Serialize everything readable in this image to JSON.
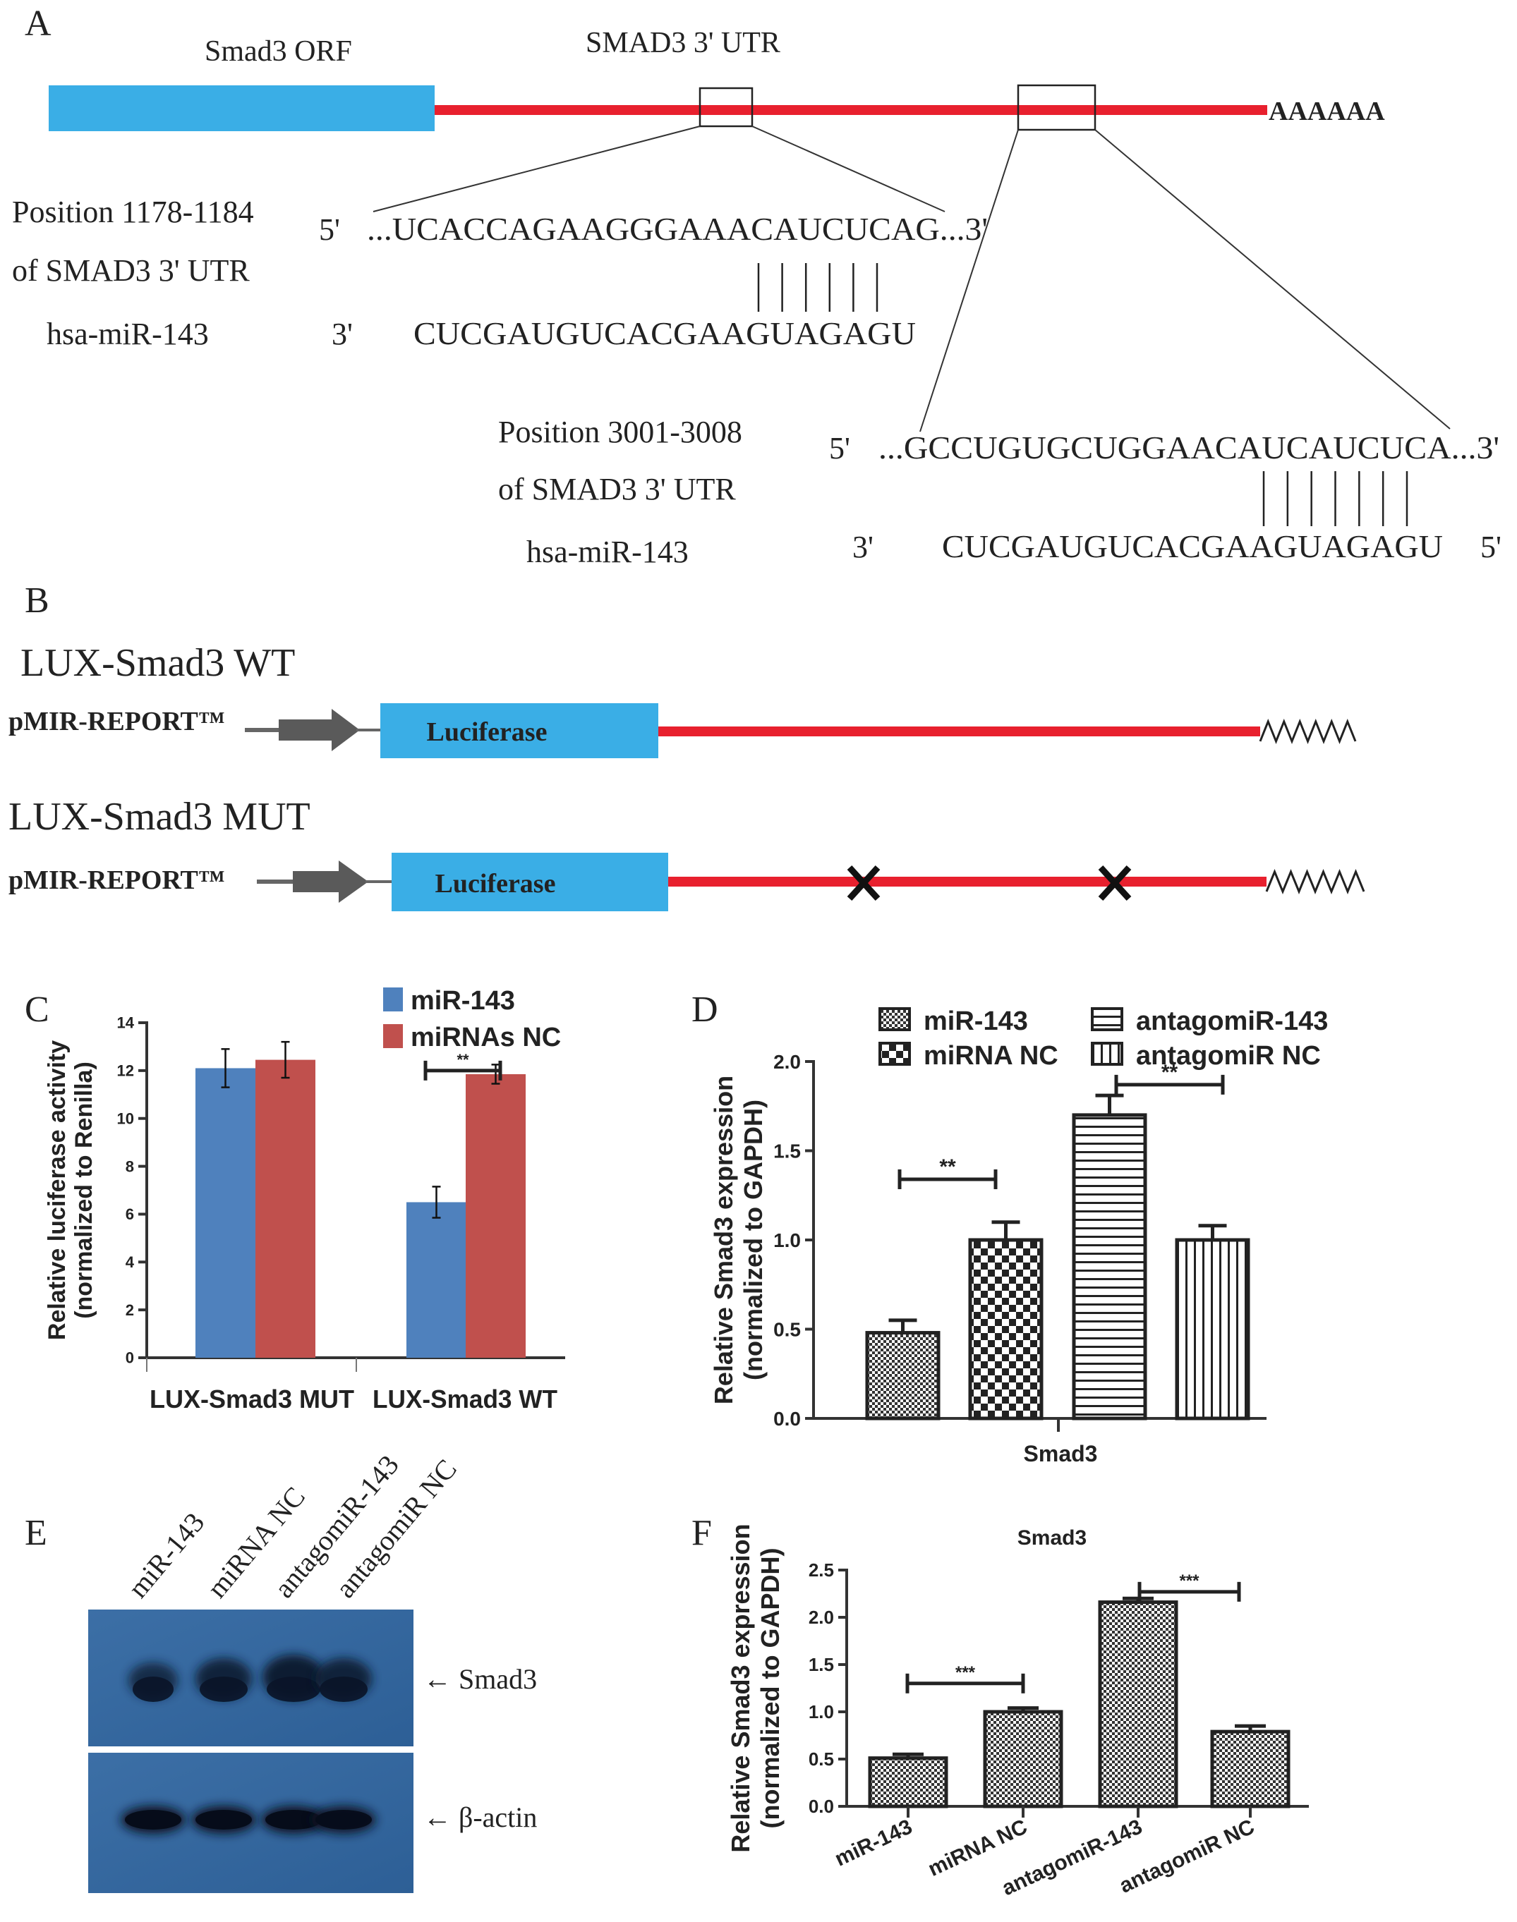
{
  "panel_labels": {
    "a": "A",
    "b": "B",
    "c": "C",
    "d": "D",
    "e": "E",
    "f": "F"
  },
  "panel_a": {
    "orf_label": "Smad3 ORF",
    "utr_label": "SMAD3  3' UTR",
    "poly_a": "AAAAAA",
    "colors": {
      "orf": "#3aaee6",
      "utr": "#e8202e"
    },
    "site1": {
      "position": "Position 1178-1184",
      "of_utr": "of SMAD3 3' UTR",
      "mirna": "hsa-miR-143",
      "five_prime": "5'",
      "target_seq": "...UCACCAGAAGGGAAACAUCUCAG...3'",
      "three_prime": "3'",
      "mirna_seq": "CUCGAUGUCACGAAGUAGAGU",
      "pair_count": 6
    },
    "site2": {
      "position": "Position 3001-3008",
      "of_utr": "of SMAD3 3' UTR",
      "mirna": "hsa-miR-143",
      "five_prime": "5'",
      "target_seq": "...GCCUGUGCUGGAACAUCAUCUCA...3'",
      "three_prime": "3'",
      "mirna_seq": "CUCGAUGUCACGAAGUAGAGU",
      "mirna_five_prime": "5'",
      "pair_count": 7
    }
  },
  "panel_b": {
    "wt_title": "LUX-Smad3  WT",
    "mut_title": "LUX-Smad3  MUT",
    "vector": "pMIR-REPORT™",
    "reporter": "Luciferase",
    "poly_a_icon": "zigzag-icon",
    "mutation_icon": "x-mark-icon"
  },
  "panel_e": {
    "lanes": [
      "miR-143",
      "miRNA NC",
      "antagomiR-143",
      "antagomiR NC"
    ],
    "band_labels": [
      "← Smad3",
      "← β-actin"
    ],
    "smad3_band_intensity": [
      0.55,
      0.8,
      1.0,
      0.8
    ],
    "actin_band_intensity": [
      1.0,
      1.0,
      1.0,
      0.95
    ]
  },
  "chart_data": [
    {
      "id": "C",
      "type": "bar",
      "ylabel": [
        "Relative luciferase activity",
        "(normalized to Renilla)"
      ],
      "ylim": [
        0,
        14
      ],
      "yticks": [
        "0",
        "2",
        "4",
        "6",
        "8",
        "10",
        "12",
        "14"
      ],
      "categories": [
        "LUX-Smad3  MUT",
        "LUX-Smad3 WT"
      ],
      "legend": "top-right",
      "series": [
        {
          "name": "miR-143",
          "values": [
            12.1,
            6.5
          ],
          "errors": [
            0.8,
            0.65
          ],
          "color": "#4f81bd"
        },
        {
          "name": "miRNAs NC",
          "values": [
            12.45,
            11.85
          ],
          "errors": [
            0.75,
            0.4
          ],
          "color": "#c0504d"
        }
      ],
      "significance": [
        {
          "between": [
            "miR-143",
            "miRNAs NC"
          ],
          "category": "LUX-Smad3 WT",
          "label": "**",
          "y": 12.0
        }
      ]
    },
    {
      "id": "D",
      "type": "bar",
      "ylabel": [
        "Relative Smad3 expression",
        "(normalized to GAPDH)"
      ],
      "xlabel": "Smad3",
      "ylim": [
        0,
        2.0
      ],
      "yticks": [
        "0.0",
        "0.5",
        "1.0",
        "1.5",
        "2.0"
      ],
      "categories": [
        "Smad3"
      ],
      "legend": "top",
      "series": [
        {
          "name": "miR-143",
          "values": [
            0.48
          ],
          "errors": [
            0.07
          ],
          "pattern": "fine-checker"
        },
        {
          "name": "miRNA NC",
          "values": [
            1.0
          ],
          "errors": [
            0.1
          ],
          "pattern": "coarse-checker"
        },
        {
          "name": "antagomiR-143",
          "values": [
            1.7
          ],
          "errors": [
            0.11
          ],
          "pattern": "horizontal-lines"
        },
        {
          "name": "antagomiR NC",
          "values": [
            1.0
          ],
          "errors": [
            0.08
          ],
          "pattern": "vertical-lines"
        }
      ],
      "significance": [
        {
          "between": [
            "miR-143",
            "miRNA NC"
          ],
          "label": "**",
          "y": 1.34
        },
        {
          "between": [
            "antagomiR-143",
            "antagomiR NC"
          ],
          "label": "**",
          "y": 1.87
        }
      ]
    },
    {
      "id": "F",
      "type": "bar",
      "title": "Smad3",
      "ylabel": [
        "Relative Smad3 expression",
        "(normalized to GAPDH)"
      ],
      "ylim": [
        0,
        2.5
      ],
      "yticks": [
        "0.0",
        "0.5",
        "1.0",
        "1.5",
        "2.0",
        "2.5"
      ],
      "categories": [
        "miR-143",
        "miRNA NC",
        "antagomiR-143",
        "antagomiR NC"
      ],
      "values": [
        0.51,
        1.0,
        2.16,
        0.79
      ],
      "errors": [
        0.04,
        0.04,
        0.04,
        0.06
      ],
      "pattern": "fine-checker",
      "significance": [
        {
          "between": [
            "miR-143",
            "miRNA NC"
          ],
          "label": "***",
          "y": 1.3
        },
        {
          "between": [
            "antagomiR-143",
            "antagomiR NC"
          ],
          "label": "***",
          "y": 2.27
        }
      ]
    }
  ]
}
